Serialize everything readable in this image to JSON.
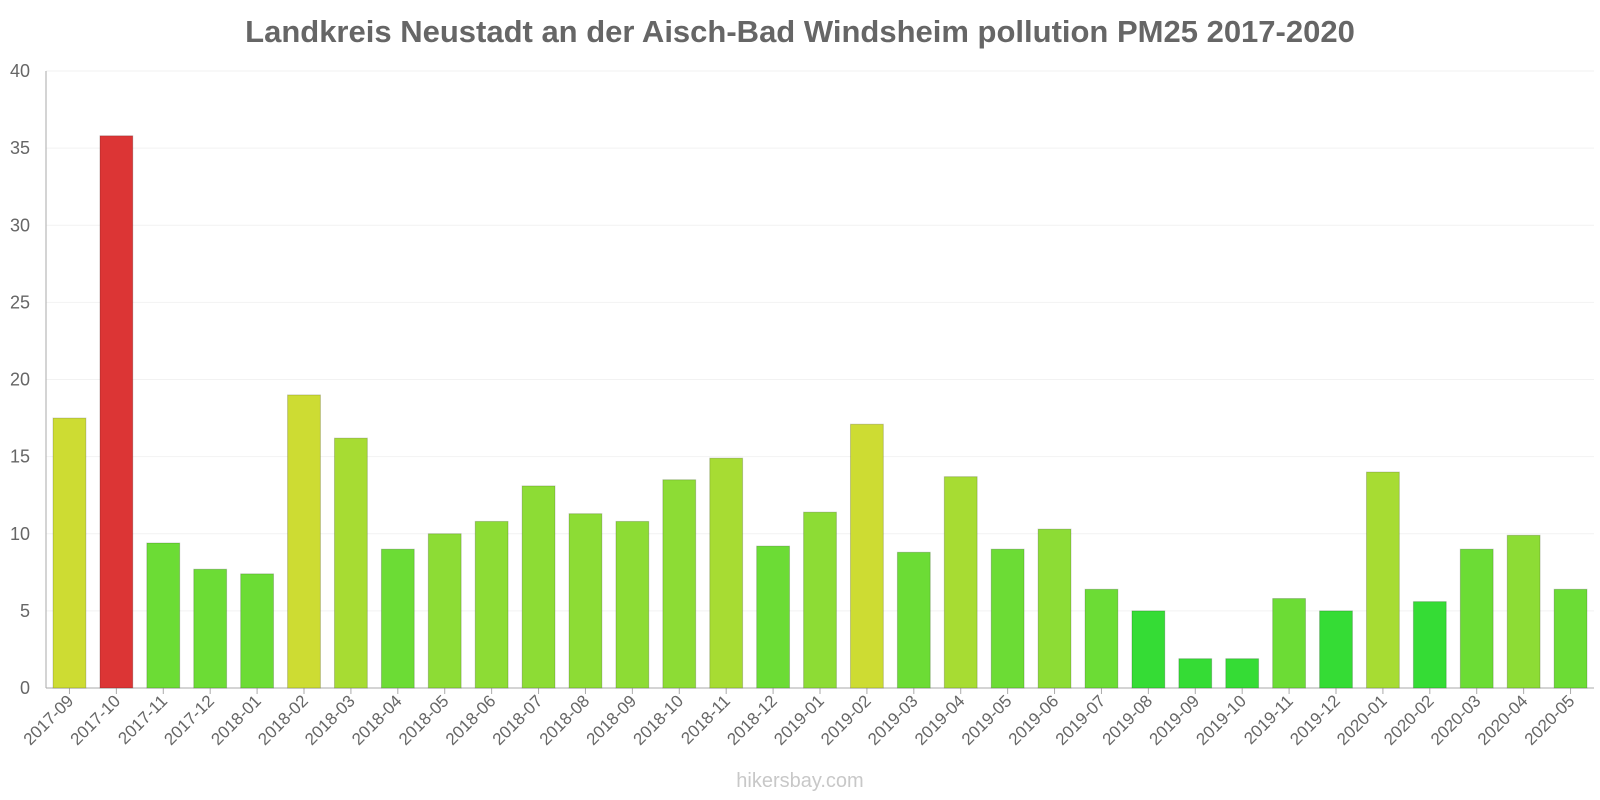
{
  "chart_data": {
    "type": "bar",
    "title": "Landkreis Neustadt an der Aisch-Bad Windsheim pollution PM25 2017-2020",
    "xlabel": "",
    "ylabel": "",
    "ylim": [
      0,
      40
    ],
    "yticks": [
      0,
      5,
      10,
      15,
      20,
      25,
      30,
      35,
      40
    ],
    "grid": true,
    "legend": "none",
    "categories": [
      "2017-09",
      "2017-10",
      "2017-11",
      "2017-12",
      "2018-01",
      "2018-02",
      "2018-03",
      "2018-04",
      "2018-05",
      "2018-06",
      "2018-07",
      "2018-08",
      "2018-09",
      "2018-10",
      "2018-11",
      "2018-12",
      "2019-01",
      "2019-02",
      "2019-03",
      "2019-04",
      "2019-05",
      "2019-06",
      "2019-07",
      "2019-08",
      "2019-09",
      "2019-10",
      "2019-11",
      "2019-12",
      "2020-01",
      "2020-02",
      "2020-03",
      "2020-04",
      "2020-05"
    ],
    "values": [
      17.5,
      35.8,
      9.4,
      7.7,
      7.4,
      19.0,
      16.2,
      9.0,
      10.0,
      10.8,
      13.1,
      11.3,
      10.8,
      13.5,
      14.9,
      9.2,
      11.4,
      17.1,
      8.8,
      13.7,
      9.0,
      10.3,
      6.4,
      5.0,
      1.9,
      1.9,
      5.8,
      5.0,
      14.0,
      5.6,
      9.0,
      9.9,
      6.4
    ],
    "colors": [
      "#cddc33",
      "#dc3535",
      "#6cdc35",
      "#6cdc35",
      "#6cdc35",
      "#cddc33",
      "#a7dc33",
      "#6cdc35",
      "#8ddc35",
      "#8ddc35",
      "#8ddc35",
      "#8ddc35",
      "#8ddc35",
      "#8ddc35",
      "#a7dc33",
      "#6cdc35",
      "#8ddc35",
      "#cddc33",
      "#6cdc35",
      "#a7dc33",
      "#6cdc35",
      "#8ddc35",
      "#6cdc35",
      "#35dc35",
      "#35dc35",
      "#35dc35",
      "#6cdc35",
      "#35dc35",
      "#a7dc33",
      "#35dc35",
      "#6cdc35",
      "#8ddc35",
      "#6cdc35"
    ]
  },
  "watermark": "hikersbay.com"
}
